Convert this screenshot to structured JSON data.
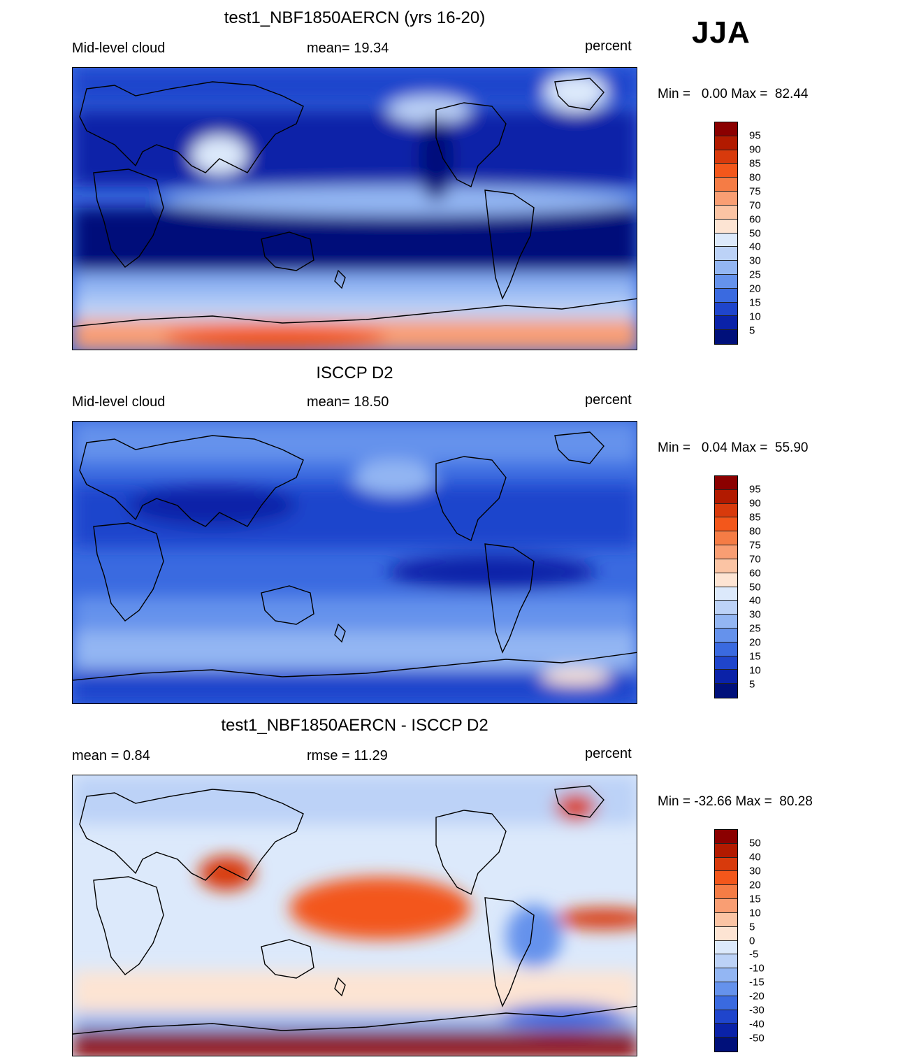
{
  "season": "JJA",
  "panels": [
    {
      "title": "test1_NBF1850AERCN (yrs 16-20)",
      "left_label": "Mid-level cloud",
      "center_label": "mean=  19.34",
      "right_label": "percent",
      "minmax": "Min =   0.00 Max =  82.44",
      "colorbar_labels": [
        "95",
        "90",
        "85",
        "80",
        "75",
        "70",
        "60",
        "50",
        "40",
        "30",
        "25",
        "20",
        "15",
        "10",
        "5"
      ],
      "colorbar_colors": [
        "#8b0000",
        "#b21a00",
        "#d83a0c",
        "#f3571b",
        "#f57c45",
        "#f99e73",
        "#fbc4a4",
        "#fde4d3",
        "#dce9fb",
        "#bcd2f7",
        "#93b6f3",
        "#6592ec",
        "#3a6ae0",
        "#1f45cc",
        "#0a22a8",
        "#00107a"
      ]
    },
    {
      "title": "ISCCP D2",
      "left_label": "Mid-level cloud",
      "center_label": "mean=  18.50",
      "right_label": "percent",
      "minmax": "Min =   0.04 Max =  55.90",
      "colorbar_labels": [
        "95",
        "90",
        "85",
        "80",
        "75",
        "70",
        "60",
        "50",
        "40",
        "30",
        "25",
        "20",
        "15",
        "10",
        "5"
      ],
      "colorbar_colors": [
        "#8b0000",
        "#b21a00",
        "#d83a0c",
        "#f3571b",
        "#f57c45",
        "#f99e73",
        "#fbc4a4",
        "#fde4d3",
        "#dce9fb",
        "#bcd2f7",
        "#93b6f3",
        "#6592ec",
        "#3a6ae0",
        "#1f45cc",
        "#0a22a8",
        "#00107a"
      ]
    },
    {
      "title": "test1_NBF1850AERCN - ISCCP D2",
      "left_label": "mean =   0.84",
      "center_label": "rmse =  11.29",
      "right_label": "percent",
      "minmax": "Min = -32.66 Max =  80.28",
      "colorbar_labels": [
        "50",
        "40",
        "30",
        "20",
        "15",
        "10",
        "5",
        "0",
        "-5",
        "-10",
        "-15",
        "-20",
        "-30",
        "-40",
        "-50"
      ],
      "colorbar_colors": [
        "#8b0000",
        "#b21a00",
        "#d83a0c",
        "#f3571b",
        "#f57c45",
        "#f99e73",
        "#fbc4a4",
        "#fde4d3",
        "#dce9fb",
        "#bcd2f7",
        "#93b6f3",
        "#6592ec",
        "#3a6ae0",
        "#1f45cc",
        "#0a22a8",
        "#00107a"
      ]
    }
  ]
}
